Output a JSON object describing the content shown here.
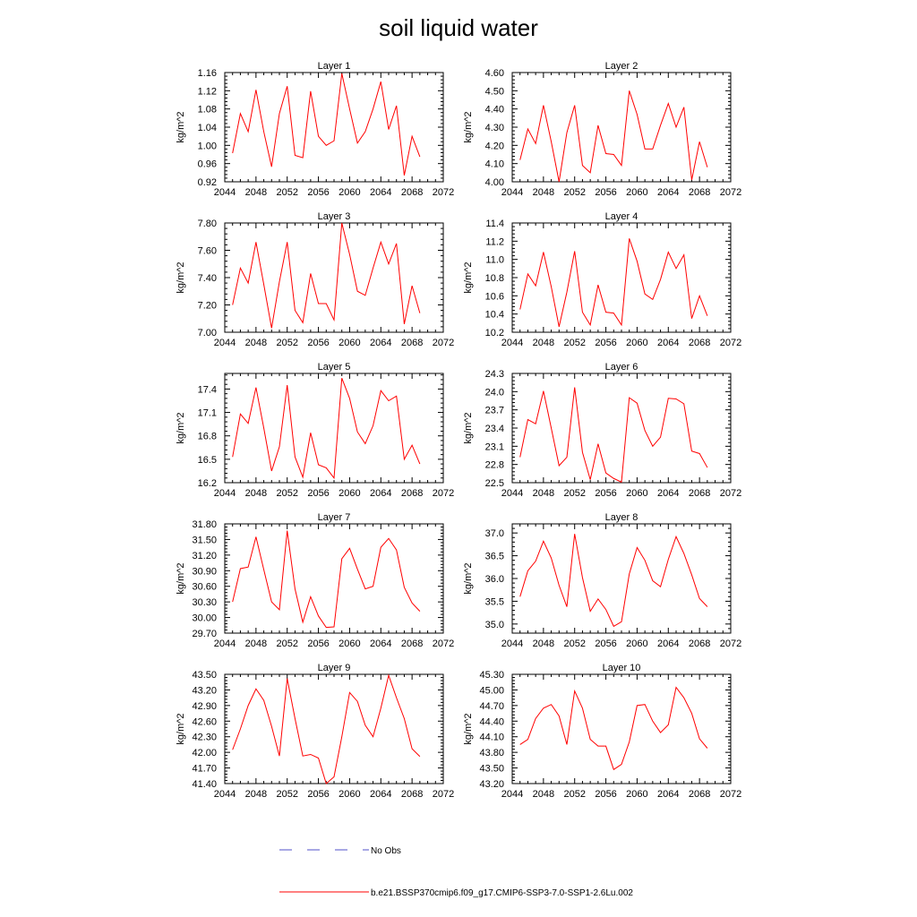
{
  "title": "soil liquid water",
  "legend": {
    "obs_label": "No Obs",
    "model_label": "b.e21.BSSP370cmip6.f09_g17.CMIP6-SSP3-7.0-SSP1-2.6Lu.002"
  },
  "colors": {
    "model": "#ff0000",
    "obs": "#5050c8",
    "axis": "#000000",
    "background": "#ffffff"
  },
  "chart_data": [
    {
      "type": "line",
      "title": "Layer 1",
      "ylabel": "kg/m^2",
      "xlim": [
        2044,
        2072
      ],
      "xticks": [
        2044,
        2048,
        2052,
        2056,
        2060,
        2064,
        2068,
        2072
      ],
      "ylim": [
        0.92,
        1.16
      ],
      "yticks": [
        "0.92",
        "0.96",
        "1.00",
        "1.04",
        "1.08",
        "1.12",
        "1.16"
      ],
      "x": [
        2045,
        2046,
        2047,
        2048,
        2049,
        2050,
        2051,
        2052,
        2053,
        2054,
        2055,
        2056,
        2057,
        2058,
        2059,
        2060,
        2061,
        2062,
        2063,
        2064,
        2065,
        2066,
        2067,
        2068,
        2069
      ],
      "series": [
        {
          "name": "b.e21.BSSP370cmip6.f09_g17.CMIP6-SSP3-7.0-SSP1-2.6Lu.002",
          "values": [
            0.983,
            1.07,
            1.03,
            1.122,
            1.03,
            0.953,
            1.07,
            1.13,
            0.978,
            0.973,
            1.119,
            1.02,
            1.0,
            1.01,
            1.158,
            1.08,
            1.005,
            1.03,
            1.08,
            1.14,
            1.035,
            1.087,
            0.934,
            1.02,
            0.975
          ]
        }
      ]
    },
    {
      "type": "line",
      "title": "Layer 2",
      "ylabel": "kg/m^2",
      "xlim": [
        2044,
        2072
      ],
      "xticks": [
        2044,
        2048,
        2052,
        2056,
        2060,
        2064,
        2068,
        2072
      ],
      "ylim": [
        4.0,
        4.6
      ],
      "yticks": [
        "4.00",
        "4.10",
        "4.20",
        "4.30",
        "4.40",
        "4.50",
        "4.60"
      ],
      "x": [
        2045,
        2046,
        2047,
        2048,
        2049,
        2050,
        2051,
        2052,
        2053,
        2054,
        2055,
        2056,
        2057,
        2058,
        2059,
        2060,
        2061,
        2062,
        2063,
        2064,
        2065,
        2066,
        2067,
        2068,
        2069
      ],
      "series": [
        {
          "name": "b.e21.BSSP370cmip6.f09_g17.CMIP6-SSP3-7.0-SSP1-2.6Lu.002",
          "values": [
            4.12,
            4.29,
            4.21,
            4.42,
            4.22,
            4.0,
            4.27,
            4.42,
            4.09,
            4.05,
            4.31,
            4.155,
            4.15,
            4.09,
            4.5,
            4.37,
            4.18,
            4.18,
            4.31,
            4.43,
            4.3,
            4.41,
            4.01,
            4.22,
            4.08
          ]
        }
      ]
    },
    {
      "type": "line",
      "title": "Layer 3",
      "ylabel": "kg/m^2",
      "xlim": [
        2044,
        2072
      ],
      "xticks": [
        2044,
        2048,
        2052,
        2056,
        2060,
        2064,
        2068,
        2072
      ],
      "ylim": [
        7.0,
        7.8
      ],
      "yticks": [
        "7.00",
        "7.20",
        "7.40",
        "7.60",
        "7.80"
      ],
      "x": [
        2045,
        2046,
        2047,
        2048,
        2049,
        2050,
        2051,
        2052,
        2053,
        2054,
        2055,
        2056,
        2057,
        2058,
        2059,
        2060,
        2061,
        2062,
        2063,
        2064,
        2065,
        2066,
        2067,
        2068,
        2069
      ],
      "series": [
        {
          "name": "b.e21.BSSP370cmip6.f09_g17.CMIP6-SSP3-7.0-SSP1-2.6Lu.002",
          "values": [
            7.2,
            7.47,
            7.36,
            7.66,
            7.35,
            7.03,
            7.37,
            7.66,
            7.16,
            7.07,
            7.43,
            7.21,
            7.21,
            7.09,
            7.8,
            7.57,
            7.3,
            7.27,
            7.47,
            7.66,
            7.5,
            7.65,
            7.06,
            7.34,
            7.14
          ]
        }
      ]
    },
    {
      "type": "line",
      "title": "Layer 4",
      "ylabel": "kg/m^2",
      "xlim": [
        2044,
        2072
      ],
      "xticks": [
        2044,
        2048,
        2052,
        2056,
        2060,
        2064,
        2068,
        2072
      ],
      "ylim": [
        10.2,
        11.4
      ],
      "yticks": [
        "10.2",
        "10.4",
        "10.6",
        "10.8",
        "11.0",
        "11.2",
        "11.4"
      ],
      "x": [
        2045,
        2046,
        2047,
        2048,
        2049,
        2050,
        2051,
        2052,
        2053,
        2054,
        2055,
        2056,
        2057,
        2058,
        2059,
        2060,
        2061,
        2062,
        2063,
        2064,
        2065,
        2066,
        2067,
        2068,
        2069
      ],
      "series": [
        {
          "name": "b.e21.BSSP370cmip6.f09_g17.CMIP6-SSP3-7.0-SSP1-2.6Lu.002",
          "values": [
            10.45,
            10.84,
            10.71,
            11.08,
            10.7,
            10.26,
            10.64,
            11.09,
            10.42,
            10.28,
            10.72,
            10.42,
            10.41,
            10.28,
            11.23,
            10.98,
            10.62,
            10.56,
            10.78,
            11.08,
            10.9,
            11.05,
            10.35,
            10.6,
            10.38
          ]
        }
      ]
    },
    {
      "type": "line",
      "title": "Layer 5",
      "ylabel": "kg/m^2",
      "xlim": [
        2044,
        2072
      ],
      "xticks": [
        2044,
        2048,
        2052,
        2056,
        2060,
        2064,
        2068,
        2072
      ],
      "ylim": [
        16.2,
        17.6
      ],
      "yticks": [
        "16.2",
        "16.5",
        "16.8",
        "17.1",
        "17.4"
      ],
      "x": [
        2045,
        2046,
        2047,
        2048,
        2049,
        2050,
        2051,
        2052,
        2053,
        2054,
        2055,
        2056,
        2057,
        2058,
        2059,
        2060,
        2061,
        2062,
        2063,
        2064,
        2065,
        2066,
        2067,
        2068,
        2069
      ],
      "series": [
        {
          "name": "b.e21.BSSP370cmip6.f09_g17.CMIP6-SSP3-7.0-SSP1-2.6Lu.002",
          "values": [
            16.53,
            17.08,
            16.96,
            17.42,
            16.9,
            16.35,
            16.66,
            17.45,
            16.53,
            16.27,
            16.84,
            16.43,
            16.39,
            16.26,
            17.54,
            17.28,
            16.85,
            16.7,
            16.93,
            17.38,
            17.25,
            17.31,
            16.5,
            16.68,
            16.44
          ]
        }
      ]
    },
    {
      "type": "line",
      "title": "Layer 6",
      "ylabel": "kg/m^2",
      "xlim": [
        2044,
        2072
      ],
      "xticks": [
        2044,
        2048,
        2052,
        2056,
        2060,
        2064,
        2068,
        2072
      ],
      "ylim": [
        22.5,
        24.3
      ],
      "yticks": [
        "22.5",
        "22.8",
        "23.1",
        "23.4",
        "23.7",
        "24.0",
        "24.3"
      ],
      "x": [
        2045,
        2046,
        2047,
        2048,
        2049,
        2050,
        2051,
        2052,
        2053,
        2054,
        2055,
        2056,
        2057,
        2058,
        2059,
        2060,
        2061,
        2062,
        2063,
        2064,
        2065,
        2066,
        2067,
        2068,
        2069
      ],
      "series": [
        {
          "name": "b.e21.BSSP370cmip6.f09_g17.CMIP6-SSP3-7.0-SSP1-2.6Lu.002",
          "values": [
            22.92,
            23.54,
            23.47,
            24.01,
            23.4,
            22.78,
            22.92,
            24.07,
            23.0,
            22.55,
            23.14,
            22.66,
            22.57,
            22.51,
            23.9,
            23.81,
            23.36,
            23.1,
            23.25,
            23.89,
            23.88,
            23.8,
            23.02,
            22.98,
            22.75
          ]
        }
      ]
    },
    {
      "type": "line",
      "title": "Layer 7",
      "ylabel": "kg/m^2",
      "xlim": [
        2044,
        2072
      ],
      "xticks": [
        2044,
        2048,
        2052,
        2056,
        2060,
        2064,
        2068,
        2072
      ],
      "ylim": [
        29.7,
        31.8
      ],
      "yticks": [
        "29.70",
        "30.00",
        "30.30",
        "30.60",
        "30.90",
        "31.20",
        "31.50",
        "31.80"
      ],
      "x": [
        2045,
        2046,
        2047,
        2048,
        2049,
        2050,
        2051,
        2052,
        2053,
        2054,
        2055,
        2056,
        2057,
        2058,
        2059,
        2060,
        2061,
        2062,
        2063,
        2064,
        2065,
        2066,
        2067,
        2068,
        2069
      ],
      "series": [
        {
          "name": "b.e21.BSSP370cmip6.f09_g17.CMIP6-SSP3-7.0-SSP1-2.6Lu.002",
          "values": [
            30.3,
            30.94,
            30.97,
            31.55,
            30.92,
            30.3,
            30.15,
            31.67,
            30.55,
            29.91,
            30.4,
            30.03,
            29.81,
            29.82,
            31.13,
            31.33,
            30.93,
            30.55,
            30.6,
            31.35,
            31.52,
            31.3,
            30.58,
            30.28,
            30.12
          ]
        }
      ]
    },
    {
      "type": "line",
      "title": "Layer 8",
      "ylabel": "kg/m^2",
      "xlim": [
        2044,
        2072
      ],
      "xticks": [
        2044,
        2048,
        2052,
        2056,
        2060,
        2064,
        2068,
        2072
      ],
      "ylim": [
        34.8,
        37.2
      ],
      "yticks": [
        "35.0",
        "35.5",
        "36.0",
        "36.5",
        "37.0"
      ],
      "x": [
        2045,
        2046,
        2047,
        2048,
        2049,
        2050,
        2051,
        2052,
        2053,
        2054,
        2055,
        2056,
        2057,
        2058,
        2059,
        2060,
        2061,
        2062,
        2063,
        2064,
        2065,
        2066,
        2067,
        2068,
        2069
      ],
      "series": [
        {
          "name": "b.e21.BSSP370cmip6.f09_g17.CMIP6-SSP3-7.0-SSP1-2.6Lu.002",
          "values": [
            35.6,
            36.17,
            36.38,
            36.82,
            36.45,
            35.85,
            35.38,
            36.98,
            36.02,
            35.28,
            35.55,
            35.32,
            34.95,
            35.05,
            36.1,
            36.68,
            36.4,
            35.95,
            35.82,
            36.42,
            36.92,
            36.55,
            36.08,
            35.56,
            35.38
          ]
        }
      ]
    },
    {
      "type": "line",
      "title": "Layer 9",
      "ylabel": "kg/m^2",
      "xlim": [
        2044,
        2072
      ],
      "xticks": [
        2044,
        2048,
        2052,
        2056,
        2060,
        2064,
        2068,
        2072
      ],
      "ylim": [
        41.4,
        43.5
      ],
      "yticks": [
        "41.40",
        "41.70",
        "42.00",
        "42.30",
        "42.60",
        "42.90",
        "43.20",
        "43.50"
      ],
      "x": [
        2045,
        2046,
        2047,
        2048,
        2049,
        2050,
        2051,
        2052,
        2053,
        2054,
        2055,
        2056,
        2057,
        2058,
        2059,
        2060,
        2061,
        2062,
        2063,
        2064,
        2065,
        2066,
        2067,
        2068,
        2069
      ],
      "series": [
        {
          "name": "b.e21.BSSP370cmip6.f09_g17.CMIP6-SSP3-7.0-SSP1-2.6Lu.002",
          "values": [
            42.05,
            42.45,
            42.9,
            43.22,
            43.0,
            42.5,
            41.93,
            43.42,
            42.65,
            41.93,
            41.96,
            41.89,
            41.4,
            41.53,
            42.3,
            43.15,
            42.98,
            42.52,
            42.3,
            42.85,
            43.48,
            43.05,
            42.65,
            42.07,
            41.92
          ]
        }
      ]
    },
    {
      "type": "line",
      "title": "Layer 10",
      "ylabel": "kg/m^2",
      "xlim": [
        2044,
        2072
      ],
      "xticks": [
        2044,
        2048,
        2052,
        2056,
        2060,
        2064,
        2068,
        2072
      ],
      "ylim": [
        43.2,
        45.3
      ],
      "yticks": [
        "43.20",
        "43.50",
        "43.80",
        "44.10",
        "44.40",
        "44.70",
        "45.00",
        "45.30"
      ],
      "x": [
        2045,
        2046,
        2047,
        2048,
        2049,
        2050,
        2051,
        2052,
        2053,
        2054,
        2055,
        2056,
        2057,
        2058,
        2059,
        2060,
        2061,
        2062,
        2063,
        2064,
        2065,
        2066,
        2067,
        2068,
        2069
      ],
      "series": [
        {
          "name": "b.e21.BSSP370cmip6.f09_g17.CMIP6-SSP3-7.0-SSP1-2.6Lu.002",
          "values": [
            43.95,
            44.05,
            44.45,
            44.65,
            44.72,
            44.5,
            43.95,
            44.98,
            44.65,
            44.05,
            43.92,
            43.92,
            43.47,
            43.57,
            44.0,
            44.7,
            44.72,
            44.4,
            44.18,
            44.33,
            45.05,
            44.85,
            44.55,
            44.06,
            43.88
          ]
        }
      ]
    }
  ]
}
